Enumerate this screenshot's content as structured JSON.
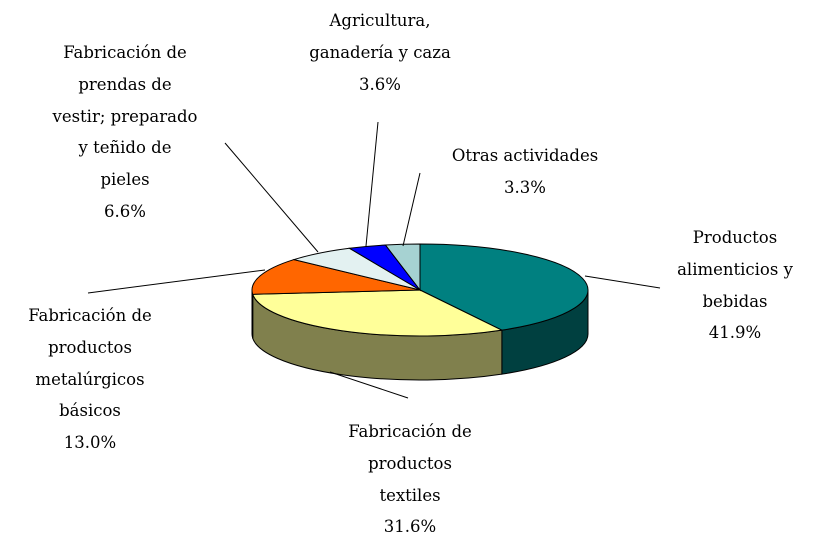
{
  "chart_data": {
    "type": "pie3d",
    "categories": [
      "Productos\nalimenticios y\nbebidas",
      "Fabricación de\nproductos\ntextiles",
      "Fabricación de\nproductos\nmetalúrgicos\nbásicos",
      "Fabricación de\nprendas de\nvestir; preparado\ny teñido de\npieles",
      "Agricultura,\nganadería y caza",
      "Otras actividades"
    ],
    "values": [
      41.9,
      31.6,
      13.0,
      6.6,
      3.6,
      3.3
    ],
    "value_labels": [
      "41.9%",
      "31.6%",
      "13.0%",
      "6.6%",
      "3.6%",
      "3.3%"
    ],
    "colors": [
      "#008080",
      "#FFFF99",
      "#FF6600",
      "#E3F1F1",
      "#0000FF",
      "#A6D2D2"
    ]
  }
}
